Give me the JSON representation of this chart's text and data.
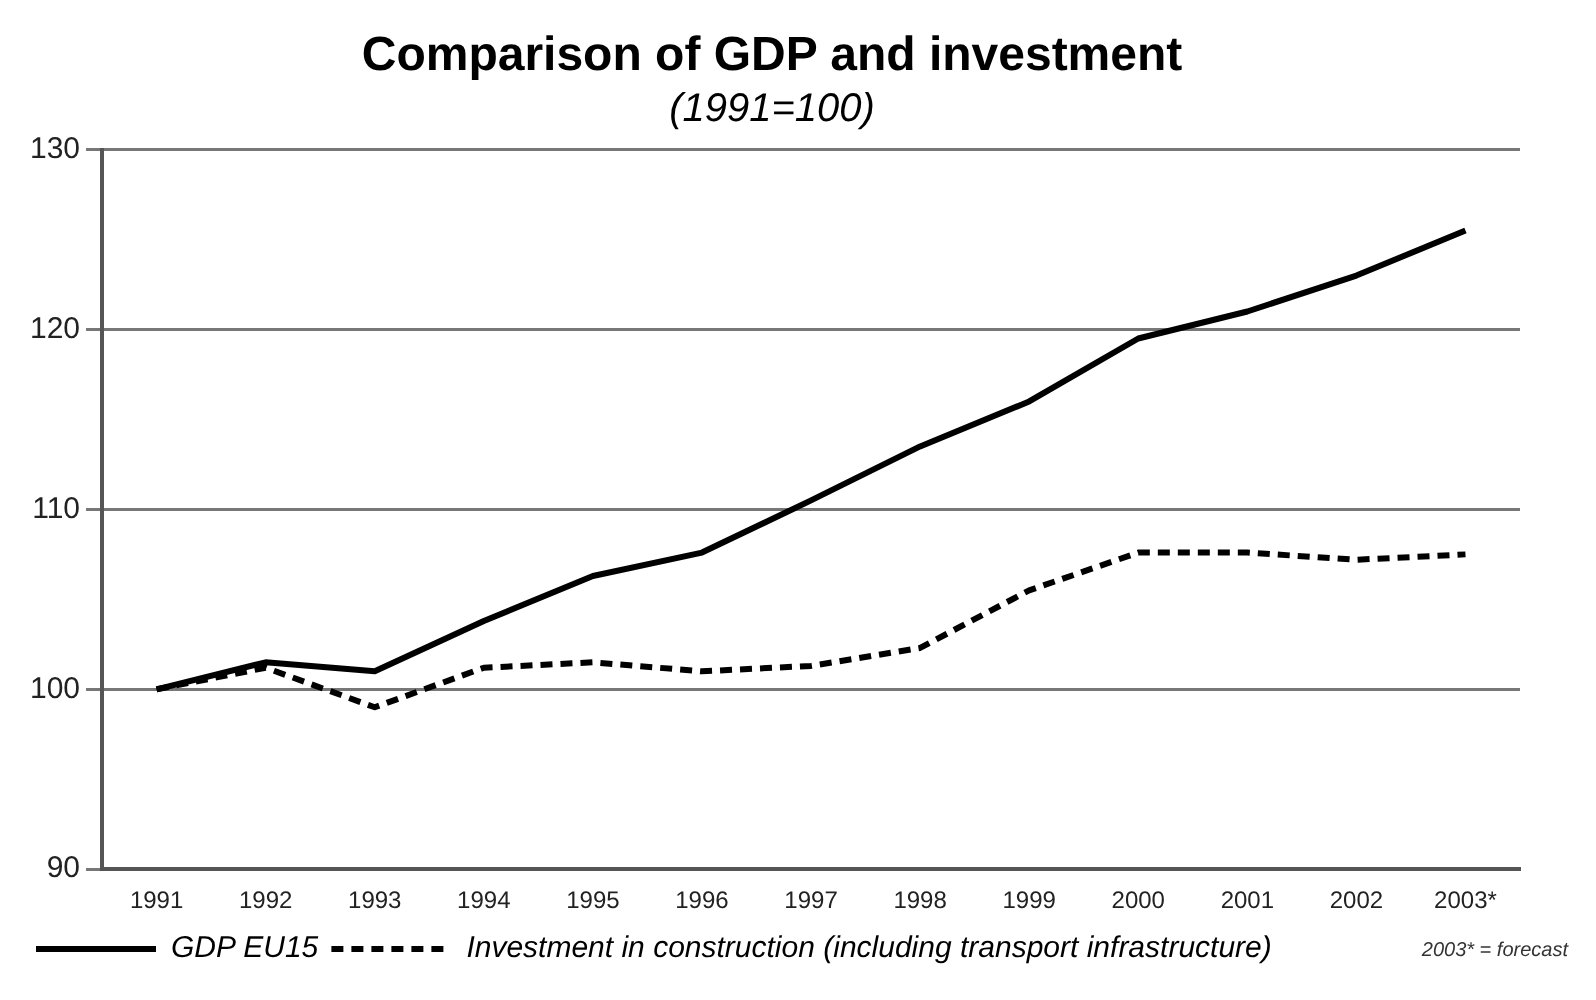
{
  "chart_data": {
    "type": "line",
    "title": "Comparison of GDP and investment",
    "subtitle": "(1991=100)",
    "categories": [
      "1991",
      "1992",
      "1993",
      "1994",
      "1995",
      "1996",
      "1997",
      "1998",
      "1999",
      "2000",
      "2001",
      "2002",
      "2003*"
    ],
    "series": [
      {
        "name": "GDP EU15",
        "color": "#000000",
        "line_style": "solid",
        "values": [
          100,
          101.5,
          101,
          103.8,
          106.3,
          107.6,
          110.5,
          113.5,
          116,
          119.5,
          121,
          123,
          125.5
        ]
      },
      {
        "name": "Investment in construction (including transport infrastructure)",
        "color": "#000000",
        "line_style": "dashed",
        "values": [
          100,
          101.2,
          99,
          101.2,
          101.5,
          101,
          101.3,
          102.3,
          105.5,
          107.6,
          107.6,
          107.2,
          107.5
        ]
      }
    ],
    "ylim": [
      90,
      130
    ],
    "yticks": [
      90,
      100,
      110,
      120,
      130
    ],
    "grid": "y",
    "legend": "bottom left",
    "marker": "none",
    "annotations": [
      "2003* = forecast"
    ]
  }
}
